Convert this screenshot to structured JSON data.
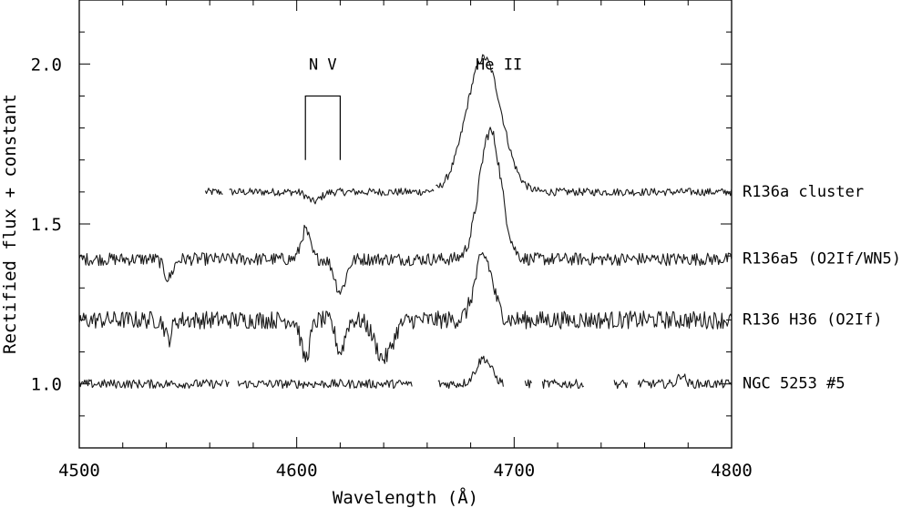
{
  "chart_data": {
    "type": "line",
    "title": "",
    "xlabel": "Wavelength  (Å)",
    "ylabel": "Rectified flux + constant",
    "xlim": [
      4500,
      4800
    ],
    "ylim": [
      0.8,
      2.2
    ],
    "grid": false,
    "x_ticks": [
      4500,
      4600,
      4700,
      4800
    ],
    "x_tick_labels": [
      "4500",
      "4600",
      "4700",
      "4800"
    ],
    "y_ticks": [
      1.0,
      1.5,
      2.0
    ],
    "y_tick_labels": [
      "1.0",
      "1.5",
      "2.0"
    ],
    "annotations": [
      {
        "text": "N V",
        "x": 4612,
        "y": 2.0
      },
      {
        "text": "He II",
        "x": 4693,
        "y": 2.0
      }
    ],
    "nv_bracket": {
      "x1": 4604,
      "x2": 4620,
      "y_top": 1.9,
      "y_bottom": 1.7
    },
    "series": [
      {
        "name": "R136a cluster",
        "baseline": 1.6,
        "segments": [
          [
            4558,
            4566
          ],
          [
            4569,
            4663
          ],
          [
            4664,
            4800
          ]
        ],
        "features": [
          {
            "center": 4686,
            "amplitude": 0.42,
            "width": 8
          },
          {
            "center": 4608,
            "amplitude": -0.03,
            "width": 3
          }
        ],
        "noise": 0.012
      },
      {
        "name": "R136a5 (O2If/WN5)",
        "baseline": 1.39,
        "segments": [
          [
            4500,
            4800
          ]
        ],
        "features": [
          {
            "center": 4689,
            "amplitude": 0.4,
            "width": 5
          },
          {
            "center": 4604,
            "amplitude": 0.09,
            "width": 2
          },
          {
            "center": 4620,
            "amplitude": -0.1,
            "width": 2.5
          },
          {
            "center": 4541,
            "amplitude": -0.06,
            "width": 2
          }
        ],
        "noise": 0.02
      },
      {
        "name": "R136 H36 (O2If)",
        "baseline": 1.2,
        "segments": [
          [
            4500,
            4800
          ]
        ],
        "features": [
          {
            "center": 4686,
            "amplitude": 0.2,
            "width": 4
          },
          {
            "center": 4604,
            "amplitude": -0.12,
            "width": 2
          },
          {
            "center": 4620,
            "amplitude": -0.1,
            "width": 2
          },
          {
            "center": 4640,
            "amplitude": -0.12,
            "width": 4
          },
          {
            "center": 4541,
            "amplitude": -0.06,
            "width": 1.5
          }
        ],
        "noise": 0.028
      },
      {
        "name": "NGC 5253 #5",
        "baseline": 1.0,
        "segments": [
          [
            4500,
            4566
          ],
          [
            4567,
            4569
          ],
          [
            4573,
            4653
          ],
          [
            4665,
            4695
          ],
          [
            4705,
            4708
          ],
          [
            4713,
            4732
          ],
          [
            4746,
            4752
          ],
          [
            4757,
            4800
          ]
        ],
        "features": [
          {
            "center": 4686,
            "amplitude": 0.08,
            "width": 3.5
          },
          {
            "center": 4777,
            "amplitude": 0.03,
            "width": 1.5
          }
        ],
        "noise": 0.014
      }
    ]
  }
}
